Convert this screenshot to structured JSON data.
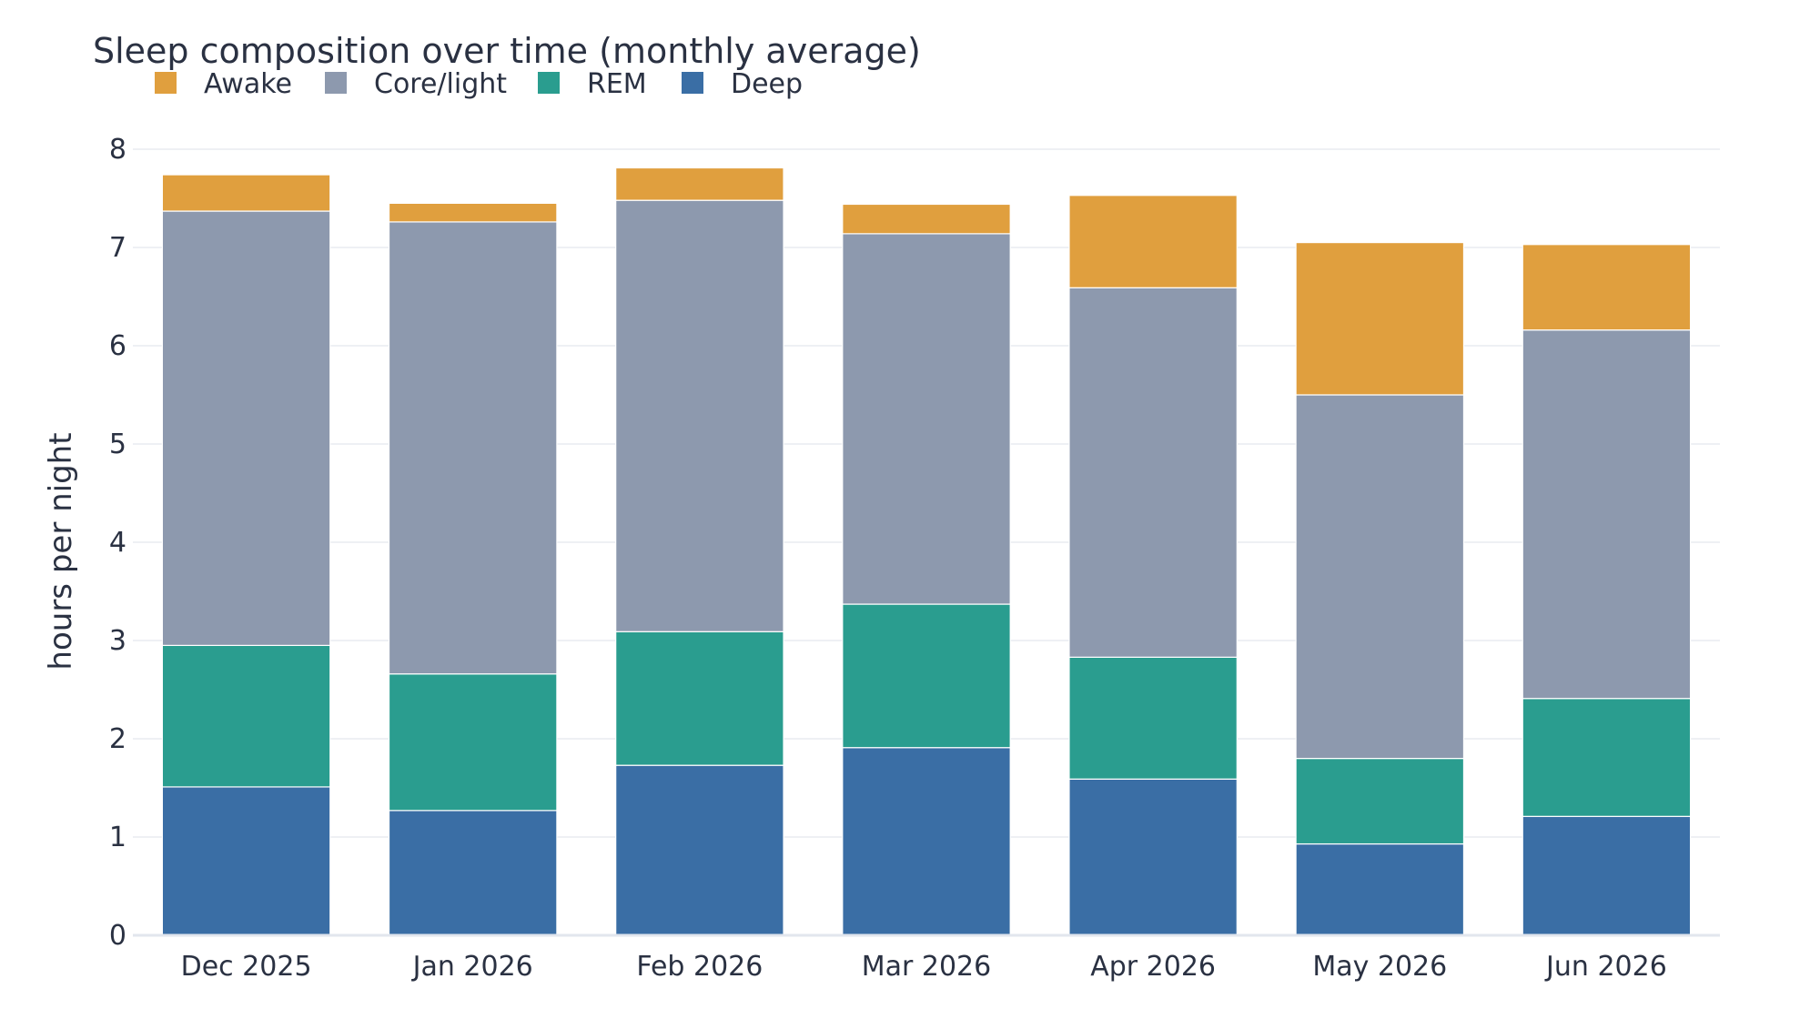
{
  "chart_data": {
    "type": "bar",
    "stacked": true,
    "title": "Sleep composition over time (monthly average)",
    "ylabel": "hours per night",
    "xlabel": "",
    "ylim": [
      0,
      8
    ],
    "yticks": [
      0,
      1,
      2,
      3,
      4,
      5,
      6,
      7,
      8
    ],
    "grid": true,
    "legend_position": "top-left",
    "categories": [
      "Dec 2025",
      "Jan 2026",
      "Feb 2026",
      "Mar 2026",
      "Apr 2026",
      "May 2026",
      "Jun 2026"
    ],
    "series": [
      {
        "name": "Deep",
        "color": "#3a6ea5",
        "values": [
          1.51,
          1.27,
          1.73,
          1.91,
          1.59,
          0.93,
          1.21
        ]
      },
      {
        "name": "REM",
        "color": "#2a9d8f",
        "values": [
          1.44,
          1.39,
          1.36,
          1.46,
          1.24,
          0.87,
          1.2
        ]
      },
      {
        "name": "Core/light",
        "color": "#8d99ae",
        "values": [
          4.42,
          4.6,
          4.39,
          3.77,
          3.76,
          3.7,
          3.75
        ]
      },
      {
        "name": "Awake",
        "color": "#e09f3e",
        "values": [
          0.37,
          0.19,
          0.33,
          0.3,
          0.94,
          1.55,
          0.87
        ]
      }
    ],
    "legend_order": [
      "Awake",
      "Core/light",
      "REM",
      "Deep"
    ]
  }
}
